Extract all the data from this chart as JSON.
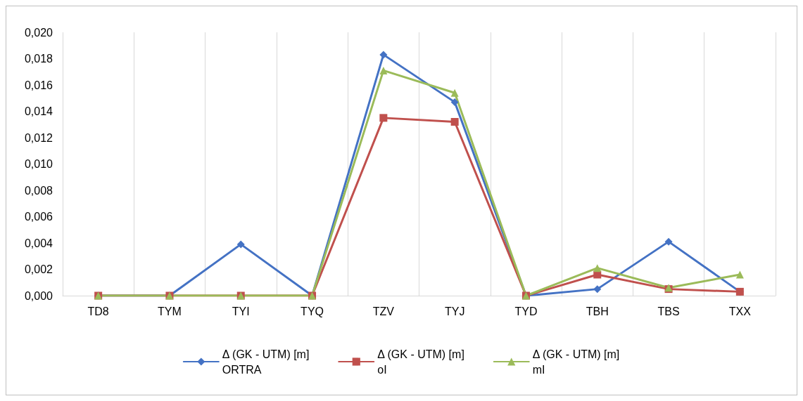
{
  "chart_data": {
    "type": "line",
    "categories": [
      "TD8",
      "TYM",
      "TYI",
      "TYQ",
      "TZV",
      "TYJ",
      "TYD",
      "TBH",
      "TBS",
      "TXX"
    ],
    "series": [
      {
        "name": "Δ (GK - UTM) [m]\nORTRA",
        "color": "#4472c4",
        "marker": "diamond",
        "values": [
          0,
          0,
          0.0039,
          0,
          0.0183,
          0.0147,
          0,
          0.0005,
          0.0041,
          0.0003
        ]
      },
      {
        "name": "Δ (GK - UTM) [m]\noI",
        "color": "#c0504d",
        "marker": "square",
        "values": [
          0,
          0,
          0,
          0,
          0.0135,
          0.0132,
          0,
          0.0016,
          0.0005,
          0.0003
        ]
      },
      {
        "name": "Δ (GK - UTM) [m]\nmI",
        "color": "#9bbb59",
        "marker": "triangle",
        "values": [
          0,
          0,
          0,
          0,
          0.0171,
          0.0154,
          0,
          0.0021,
          0.0006,
          0.0016
        ]
      }
    ],
    "ylim": [
      0,
      0.02
    ],
    "yticks": [
      {
        "value": 0,
        "label": "0,000"
      },
      {
        "value": 0.002,
        "label": "0,002"
      },
      {
        "value": 0.004,
        "label": "0,004"
      },
      {
        "value": 0.006,
        "label": "0,006"
      },
      {
        "value": 0.008,
        "label": "0,008"
      },
      {
        "value": 0.01,
        "label": "0,010"
      },
      {
        "value": 0.012,
        "label": "0,012"
      },
      {
        "value": 0.014,
        "label": "0,014"
      },
      {
        "value": 0.016,
        "label": "0,016"
      },
      {
        "value": 0.018,
        "label": "0,018"
      },
      {
        "value": 0.02,
        "label": "0,020"
      }
    ],
    "grid": "x",
    "legend": "bottom",
    "line_style": "solid"
  }
}
